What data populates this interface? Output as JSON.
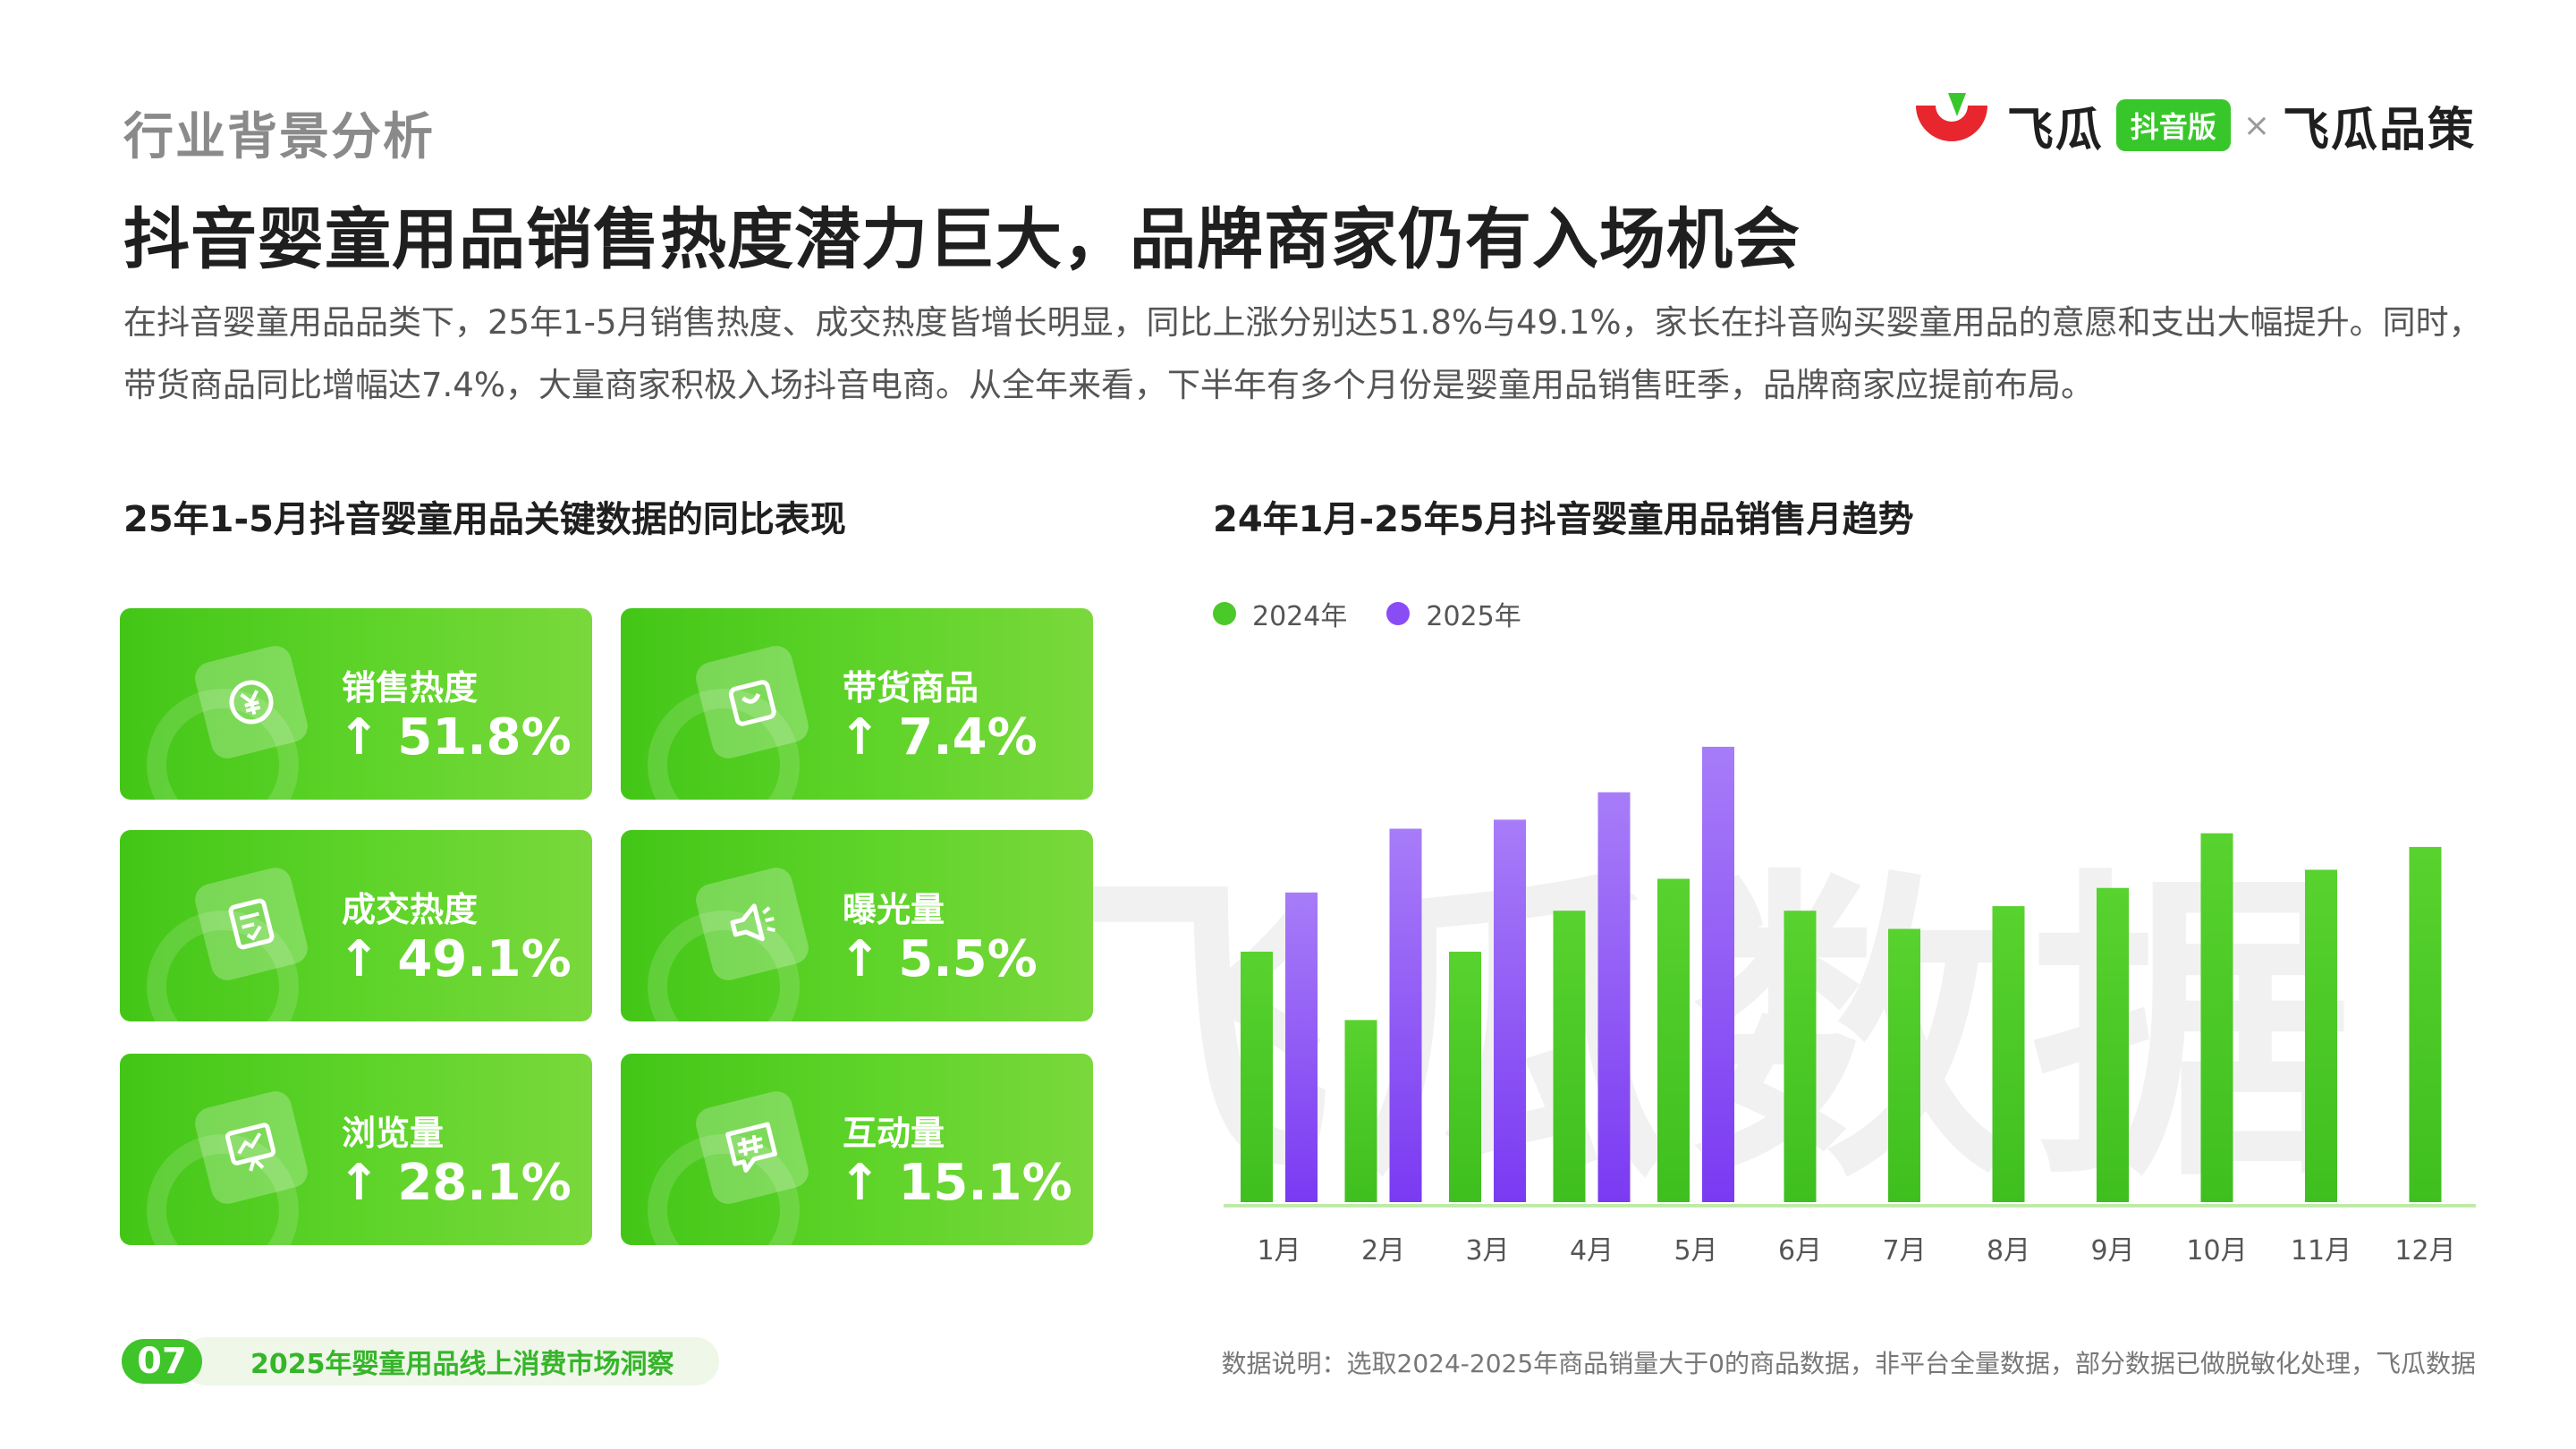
{
  "header": {
    "section_title": "行业背景分析",
    "main_title": "抖音婴童用品销售热度潜力巨大，品牌商家仍有入场机会",
    "summary": "在抖音婴童用品品类下，25年1-5月销售热度、成交热度皆增长明显，同比上涨分别达51.8%与49.1%，家长在抖音购买婴童用品的意愿和支出大幅提升。同时，带货商品同比增幅达7.4%，大量商家积极入场抖音电商。从全年来看，下半年有多个月份是婴童用品销售旺季，品牌商家应提前布局。"
  },
  "logo": {
    "brand_left": "飞瓜",
    "pill": "抖音版",
    "separator": "×",
    "brand_right": "飞瓜品策",
    "color_red": "#e8262d",
    "color_green": "#38c72a"
  },
  "kpi_panel": {
    "heading": "25年1-5月抖音婴童用品关键数据的同比表现",
    "cards": [
      {
        "label": "销售热度",
        "value": "↑ 51.8%",
        "icon": "currency-icon"
      },
      {
        "label": "带货商品",
        "value": "↑ 7.4%",
        "icon": "shopping-bag-icon"
      },
      {
        "label": "成交热度",
        "value": "↑ 49.1%",
        "icon": "checklist-icon"
      },
      {
        "label": "曝光量",
        "value": "↑ 5.5%",
        "icon": "megaphone-icon"
      },
      {
        "label": "浏览量",
        "value": "↑ 28.1%",
        "icon": "trend-board-icon"
      },
      {
        "label": "互动量",
        "value": "↑ 15.1%",
        "icon": "hashtag-chat-icon"
      }
    ]
  },
  "chart_panel": {
    "heading": "24年1月-25年5月抖音婴童用品销售月趋势"
  },
  "watermark": "飞瓜数据",
  "chart_data": {
    "type": "bar",
    "title": "24年1月-25年5月抖音婴童用品销售月趋势",
    "categories": [
      "1月",
      "2月",
      "3月",
      "4月",
      "5月",
      "6月",
      "7月",
      "8月",
      "9月",
      "10月",
      "11月",
      "12月"
    ],
    "series": [
      {
        "name": "2024年",
        "color": "#4cc92a",
        "values": [
          55,
          40,
          55,
          64,
          71,
          64,
          60,
          65,
          69,
          81,
          73,
          78
        ]
      },
      {
        "name": "2025年",
        "color": "#8a4cf5",
        "values": [
          68,
          82,
          84,
          90,
          100,
          null,
          null,
          null,
          null,
          null,
          null,
          null
        ]
      }
    ],
    "ylim": [
      0,
      110
    ],
    "legend": "top-left",
    "grid": false
  },
  "footer": {
    "page_number": "07",
    "report_title": "2025年婴童用品线上消费市场洞察",
    "footnote": "数据说明：选取2024-2025年商品销量大于0的商品数据，非平台全量数据，部分数据已做脱敏化处理，飞瓜数据"
  }
}
